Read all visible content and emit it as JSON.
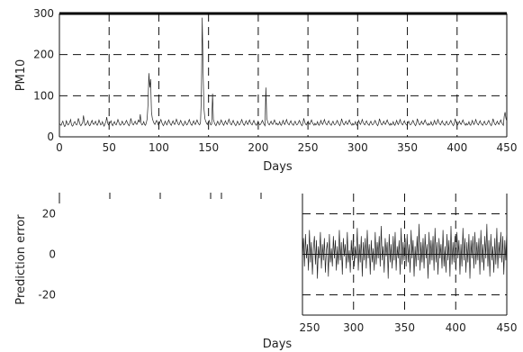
{
  "chart_data": [
    {
      "type": "line",
      "title": "",
      "xlabel": "Days",
      "ylabel": "PM10",
      "xlim": [
        0,
        450
      ],
      "ylim": [
        0,
        300
      ],
      "xticks": [
        0,
        50,
        100,
        150,
        200,
        250,
        300,
        350,
        400,
        450
      ],
      "yticks": [
        0,
        100,
        200,
        300
      ],
      "grid": true,
      "series": [
        {
          "values": [
            32,
            30,
            28,
            34,
            38,
            30,
            25,
            27,
            40,
            33,
            29,
            31,
            36,
            42,
            30,
            26,
            28,
            35,
            37,
            31,
            29,
            33,
            45,
            38,
            30,
            27,
            31,
            34,
            52,
            36,
            28,
            30,
            33,
            39,
            31,
            27,
            29,
            36,
            40,
            32,
            30,
            34,
            38,
            31,
            28,
            33,
            41,
            35,
            29,
            31,
            37,
            30,
            26,
            32,
            36,
            48,
            34,
            29,
            31,
            35,
            39,
            30,
            27,
            33,
            37,
            31,
            29,
            35,
            42,
            36,
            30,
            28,
            32,
            38,
            33,
            29,
            31,
            36,
            40,
            34,
            30,
            27,
            33,
            45,
            37,
            31,
            29,
            34,
            38,
            32,
            30,
            36,
            41,
            35,
            55,
            33,
            29,
            31,
            37,
            30,
            28,
            34,
            44,
            80,
            155,
            120,
            140,
            60,
            45,
            38,
            33,
            30,
            36,
            40,
            34,
            29,
            31,
            37,
            42,
            35,
            30,
            27,
            33,
            38,
            32,
            29,
            35,
            41,
            36,
            31,
            28,
            34,
            39,
            33,
            30,
            36,
            43,
            37,
            31,
            29,
            35,
            40,
            34,
            30,
            27,
            32,
            38,
            33,
            29,
            31,
            37,
            42,
            35,
            30,
            28,
            34,
            39,
            33,
            30,
            36,
            41,
            35,
            31,
            29,
            35,
            100,
            290,
            160,
            70,
            45,
            38,
            33,
            30,
            36,
            40,
            34,
            29,
            31,
            105,
            42,
            35,
            30,
            27,
            33,
            38,
            32,
            29,
            35,
            41,
            36,
            31,
            28,
            34,
            39,
            33,
            30,
            36,
            43,
            37,
            31,
            29,
            35,
            40,
            34,
            30,
            27,
            32,
            38,
            33,
            29,
            31,
            37,
            42,
            35,
            30,
            28,
            34,
            39,
            33,
            30,
            36,
            41,
            35,
            31,
            29,
            35,
            40,
            34,
            30,
            28,
            33,
            38,
            32,
            29,
            31,
            36,
            40,
            34,
            30,
            27,
            120,
            45,
            37,
            31,
            29,
            34,
            38,
            32,
            30,
            36,
            41,
            35,
            30,
            33,
            29,
            31,
            37,
            30,
            28,
            34,
            40,
            33,
            30,
            36,
            42,
            35,
            31,
            29,
            35,
            39,
            33,
            30,
            28,
            34,
            38,
            32,
            29,
            31,
            36,
            40,
            34,
            30,
            27,
            33,
            45,
            37,
            31,
            29,
            34,
            38,
            32,
            30,
            36,
            41,
            35,
            31,
            28,
            33,
            29,
            31,
            37,
            30,
            28,
            34,
            40,
            33,
            30,
            36,
            42,
            35,
            31,
            29,
            35,
            39,
            33,
            30,
            28,
            34,
            38,
            32,
            29,
            31,
            36,
            40,
            34,
            30,
            27,
            33,
            44,
            37,
            31,
            29,
            34,
            38,
            32,
            30,
            36,
            41,
            35,
            31,
            28,
            33,
            29,
            31,
            37,
            30,
            28,
            34,
            40,
            33,
            30,
            36,
            42,
            35,
            31,
            29,
            35,
            39,
            33,
            30,
            28,
            34,
            38,
            32,
            29,
            31,
            36,
            40,
            34,
            30,
            27,
            33,
            44,
            37,
            31,
            29,
            34,
            38,
            32,
            30,
            36,
            41,
            35,
            31,
            28,
            33,
            29,
            31,
            37,
            30,
            28,
            34,
            40,
            33,
            30,
            36,
            42,
            35,
            31,
            29,
            35,
            39,
            33,
            30,
            28,
            34,
            38,
            32,
            29,
            31,
            36,
            40,
            34,
            30,
            27,
            33,
            44,
            37,
            31,
            29,
            34,
            38,
            32,
            30,
            36,
            41,
            35,
            31,
            28,
            33,
            29,
            31,
            37,
            30,
            28,
            34,
            40,
            33,
            30,
            36,
            42,
            35,
            31,
            29,
            35,
            39,
            33,
            30,
            28,
            34,
            38,
            32,
            29,
            31,
            36,
            40,
            34,
            30,
            27,
            33,
            44,
            37,
            31,
            29,
            34,
            38,
            32,
            30,
            36,
            41,
            35,
            31,
            28,
            33,
            29,
            31,
            37,
            30,
            28,
            34,
            40,
            33,
            30,
            36,
            42,
            35,
            31,
            29,
            35,
            39,
            33,
            30,
            28,
            34,
            38,
            32,
            29,
            31,
            36,
            40,
            34,
            30,
            27,
            33,
            44,
            37,
            31,
            29,
            34,
            38,
            32,
            30,
            36,
            41,
            35,
            31,
            28,
            50,
            60,
            45,
            38
          ]
        }
      ]
    },
    {
      "type": "line",
      "title": "",
      "xlabel": "Days",
      "ylabel": "Prediction error",
      "xlim": [
        250,
        450
      ],
      "ylim": [
        -30,
        30
      ],
      "xticks": [
        250,
        300,
        350,
        400,
        450
      ],
      "yticks": [
        -20,
        0,
        20
      ],
      "grid": true,
      "series": [
        {
          "x_start": 250,
          "values": [
            -3,
            8,
            -6,
            10,
            -2,
            5,
            -8,
            12,
            -4,
            6,
            -10,
            3,
            9,
            -5,
            7,
            -12,
            4,
            -2,
            11,
            -7,
            5,
            -3,
            8,
            -9,
            2,
            6,
            -11,
            10,
            -4,
            3,
            -6,
            9,
            -2,
            7,
            -8,
            4,
            -5,
            12,
            -3,
            6,
            -10,
            8,
            -1,
            5,
            -7,
            11,
            -4,
            2,
            -9,
            7,
            -3,
            10,
            -6,
            4,
            -2,
            13,
            -8,
            5,
            -4,
            9,
            -11,
            6,
            -3,
            8,
            -7,
            12,
            -2,
            5,
            -10,
            7,
            -4,
            3,
            -8,
            11,
            -5,
            6,
            -2,
            9,
            -6,
            14,
            -3,
            4,
            -9,
            8,
            -1,
            6,
            -12,
            10,
            -4,
            5,
            -7,
            9,
            -3,
            11,
            -8,
            4,
            -2,
            7,
            -10,
            13,
            -5,
            6,
            -3,
            8,
            -6,
            10,
            -4,
            5,
            -9,
            12,
            -2,
            7,
            -11,
            4,
            -6,
            9,
            -3,
            15,
            -8,
            6,
            -4,
            8,
            -7,
            10,
            -2,
            5,
            -12,
            11,
            -5,
            7,
            -3,
            9,
            -8,
            13,
            -4,
            6,
            -10,
            8,
            -2,
            5,
            -7,
            12,
            -6,
            4,
            -9,
            10,
            -3,
            7,
            -11,
            14,
            -5,
            6,
            -4,
            9,
            -8,
            11,
            -2,
            7,
            -10,
            5,
            -6,
            13,
            -3,
            8,
            -9,
            6,
            -4,
            10,
            -12,
            7,
            -2,
            9,
            -7,
            11,
            -5,
            6,
            -3,
            8,
            -10,
            12,
            -4,
            5,
            -8,
            9,
            -2,
            15,
            -6,
            7,
            -11,
            10,
            -3,
            4,
            -9,
            8,
            -5,
            13,
            -7,
            6,
            -2,
            11,
            -4,
            9,
            -10,
            7,
            -3,
            12
          ]
        }
      ]
    }
  ]
}
